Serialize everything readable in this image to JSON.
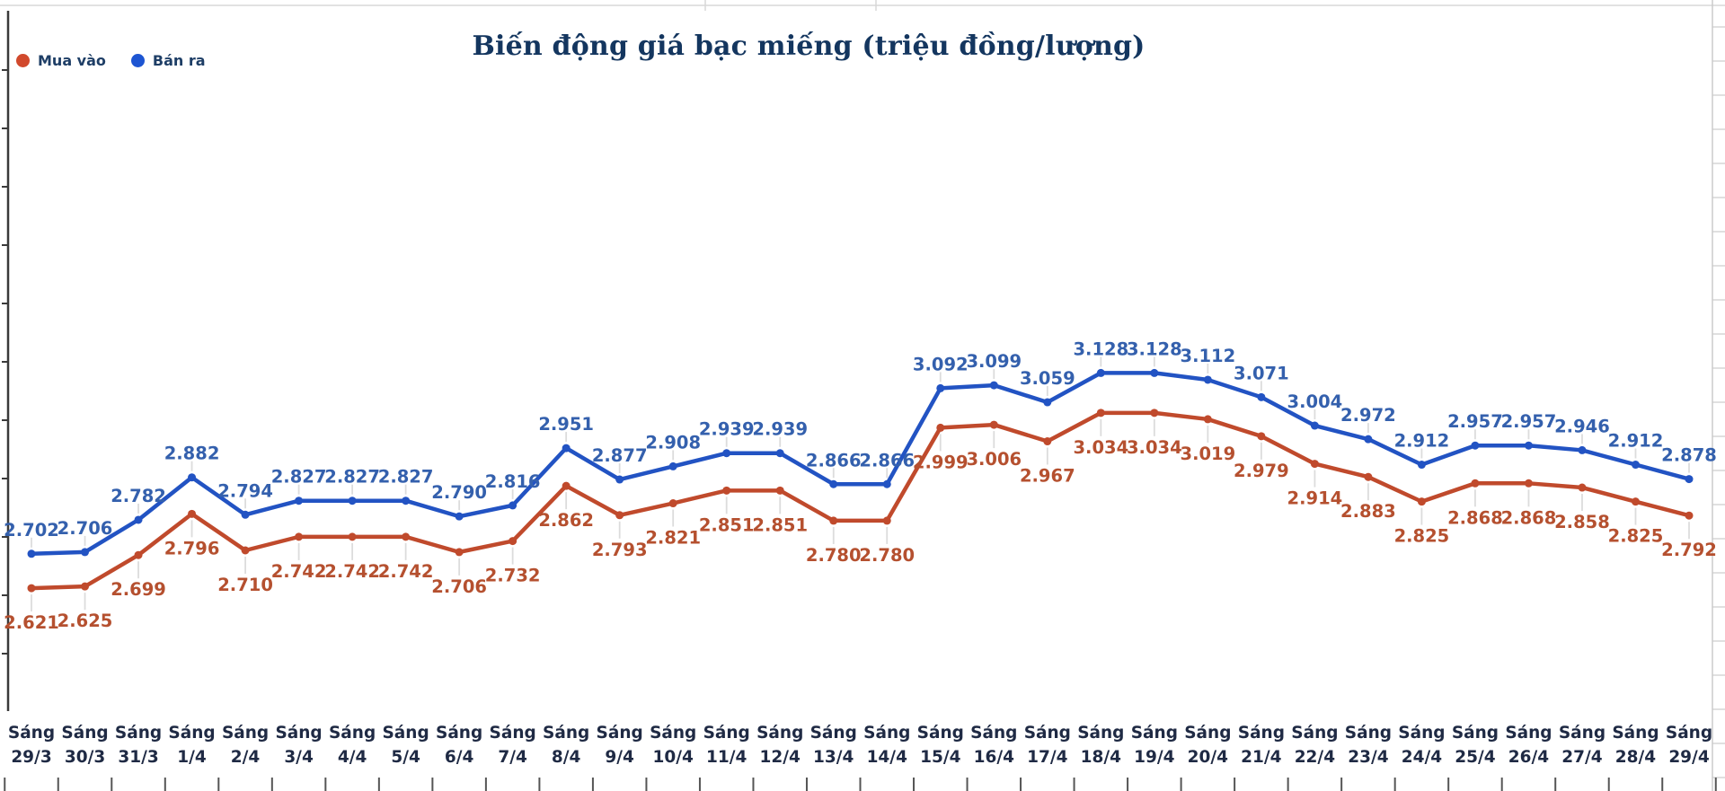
{
  "chart_data": {
    "type": "line",
    "title": "Biến động giá bạc miếng (triệu đồng/lượng)",
    "xlabel": "",
    "ylabel": "",
    "ylim": [
      2.6,
      3.15
    ],
    "grid": false,
    "legend_position": "top-left",
    "value_decimals": 3,
    "categories": [
      "Sáng 29/3",
      "Sáng 30/3",
      "Sáng 31/3",
      "Sáng 1/4",
      "Sáng 2/4",
      "Sáng 3/4",
      "Sáng 4/4",
      "Sáng 5/4",
      "Sáng 6/4",
      "Sáng 7/4",
      "Sáng 8/4",
      "Sáng 9/4",
      "Sáng 10/4",
      "Sáng 11/4",
      "Sáng 12/4",
      "Sáng 13/4",
      "Sáng 14/4",
      "Sáng 15/4",
      "Sáng 16/4",
      "Sáng 17/4",
      "Sáng 18/4",
      "Sáng 19/4",
      "Sáng 20/4",
      "Sáng 21/4",
      "Sáng 22/4",
      "Sáng 23/4",
      "Sáng 24/4",
      "Sáng 25/4",
      "Sáng 26/4",
      "Sáng 27/4",
      "Sáng 28/4",
      "Sáng 29/4"
    ],
    "series": [
      {
        "name": "Mua vào",
        "key": "mua-vao",
        "color": "#c04a2c",
        "label_color": "#b5502f",
        "dot_color": "#d1492c",
        "label_side": "below",
        "values": [
          2.621,
          2.625,
          2.699,
          2.796,
          2.71,
          2.742,
          2.742,
          2.742,
          2.706,
          2.732,
          2.862,
          2.793,
          2.821,
          2.851,
          2.851,
          2.78,
          2.78,
          2.999,
          3.006,
          2.967,
          3.034,
          3.034,
          3.019,
          2.979,
          2.914,
          2.883,
          2.825,
          2.868,
          2.868,
          2.858,
          2.825,
          2.792
        ]
      },
      {
        "name": "Bán ra",
        "key": "ban-ra",
        "color": "#2253c3",
        "label_color": "#3460ad",
        "dot_color": "#1d55d2",
        "label_side": "above",
        "values": [
          2.702,
          2.706,
          2.782,
          2.882,
          2.794,
          2.827,
          2.827,
          2.827,
          2.79,
          2.816,
          2.951,
          2.877,
          2.908,
          2.939,
          2.939,
          2.866,
          2.866,
          3.092,
          3.099,
          3.059,
          3.128,
          3.128,
          3.112,
          3.071,
          3.004,
          2.972,
          2.912,
          2.957,
          2.957,
          2.946,
          2.912,
          2.878
        ]
      }
    ]
  }
}
